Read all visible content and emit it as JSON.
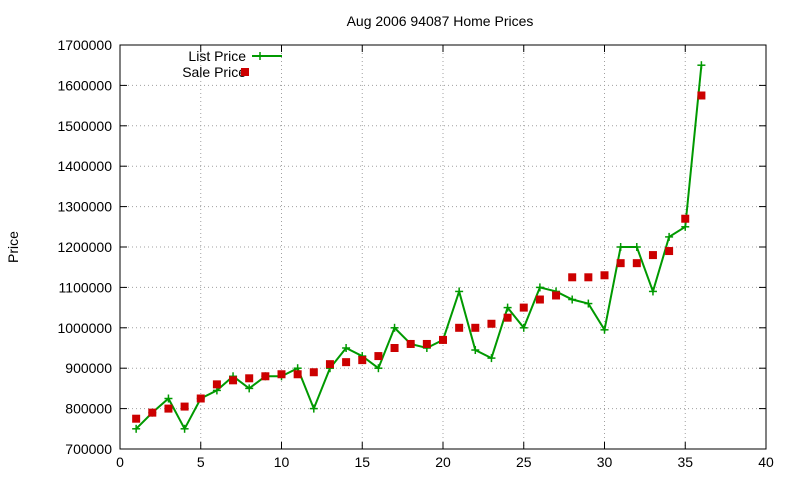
{
  "chart_data": {
    "type": "line",
    "title": "Aug 2006 94087 Home Prices",
    "xlabel": "",
    "ylabel": "Price",
    "xlim": [
      0,
      40
    ],
    "ylim": [
      700000,
      1700000
    ],
    "xticks": [
      0,
      5,
      10,
      15,
      20,
      25,
      30,
      35,
      40
    ],
    "yticks": [
      700000,
      800000,
      900000,
      1000000,
      1100000,
      1200000,
      1300000,
      1400000,
      1500000,
      1600000,
      1700000
    ],
    "grid": true,
    "legend_position": "top-left",
    "series": [
      {
        "name": "List Price",
        "style": "line-with-plus-markers",
        "color": "#009900",
        "x": [
          1,
          2,
          3,
          4,
          5,
          6,
          7,
          8,
          9,
          10,
          11,
          12,
          13,
          14,
          15,
          16,
          17,
          18,
          19,
          20,
          21,
          22,
          23,
          24,
          25,
          26,
          27,
          28,
          29,
          30,
          31,
          32,
          33,
          34,
          35,
          36
        ],
        "values": [
          750000,
          790000,
          825000,
          750000,
          825000,
          845000,
          880000,
          850000,
          880000,
          880000,
          900000,
          800000,
          900000,
          950000,
          930000,
          900000,
          1000000,
          960000,
          950000,
          970000,
          1090000,
          945000,
          925000,
          1050000,
          1000000,
          1100000,
          1090000,
          1070000,
          1060000,
          995000,
          1200000,
          1200000,
          1090000,
          1225000,
          1250000,
          1650000
        ]
      },
      {
        "name": "Sale Price",
        "style": "square-markers",
        "color": "#cc0000",
        "x": [
          1,
          2,
          3,
          4,
          5,
          6,
          7,
          8,
          9,
          10,
          11,
          12,
          13,
          14,
          15,
          16,
          17,
          18,
          19,
          20,
          21,
          22,
          23,
          24,
          25,
          26,
          27,
          28,
          29,
          30,
          31,
          32,
          33,
          34,
          35,
          36
        ],
        "values": [
          775000,
          790000,
          800000,
          805000,
          825000,
          860000,
          870000,
          875000,
          880000,
          885000,
          885000,
          890000,
          910000,
          915000,
          920000,
          930000,
          950000,
          960000,
          960000,
          970000,
          1000000,
          1000000,
          1010000,
          1025000,
          1050000,
          1070000,
          1080000,
          1125000,
          1125000,
          1130000,
          1160000,
          1160000,
          1180000,
          1190000,
          1270000,
          1575000
        ]
      }
    ]
  }
}
